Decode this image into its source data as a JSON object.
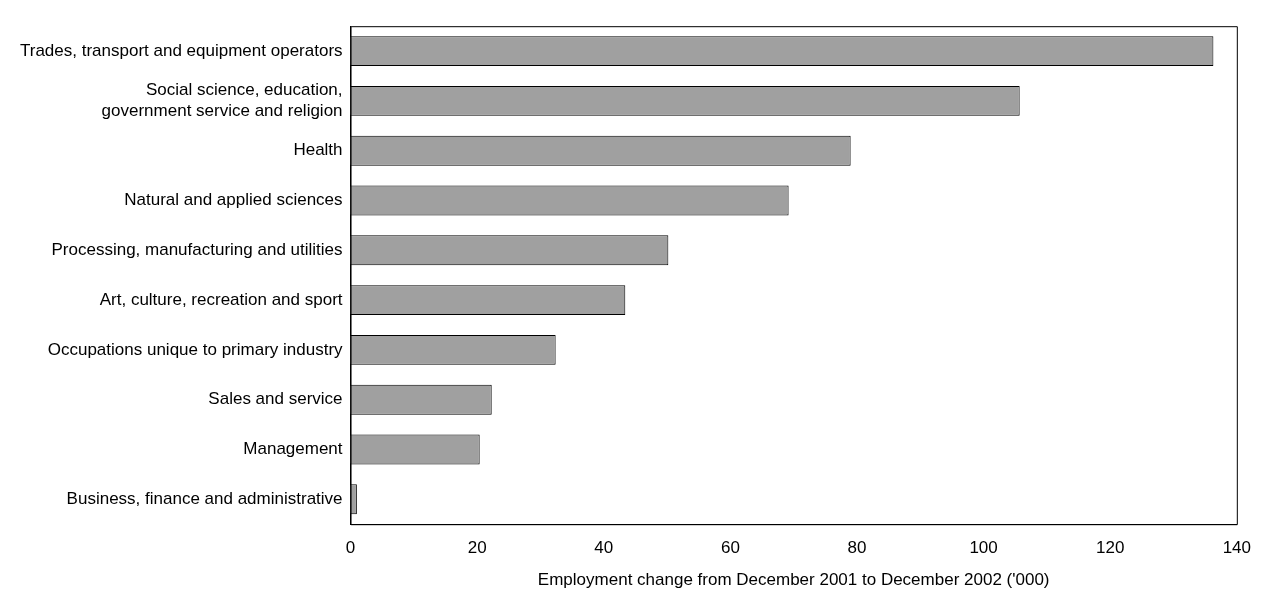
{
  "chart_data": {
    "type": "bar",
    "orientation": "horizontal",
    "xlabel": "Employment change from December 2001 to December 2002 ('000)",
    "categories": [
      "Trades, transport and equipment operators",
      "Social science, education,\ngovernment service and religion",
      "Health",
      "Natural and applied sciences",
      "Processing, manufacturing and utilities",
      "Art, culture, recreation and sport",
      "Occupations unique to primary industry",
      "Sales and service",
      "Management",
      "Business, finance and administrative"
    ],
    "values": [
      136.3,
      105.7,
      79.0,
      69.2,
      50.2,
      43.4,
      32.4,
      22.3,
      20.4,
      1.0
    ],
    "color": "#a0a0a0",
    "xlim": [
      0,
      140
    ],
    "xticks": [
      0,
      20,
      40,
      60,
      80,
      100,
      120,
      140
    ],
    "grid": false,
    "legend": false
  }
}
